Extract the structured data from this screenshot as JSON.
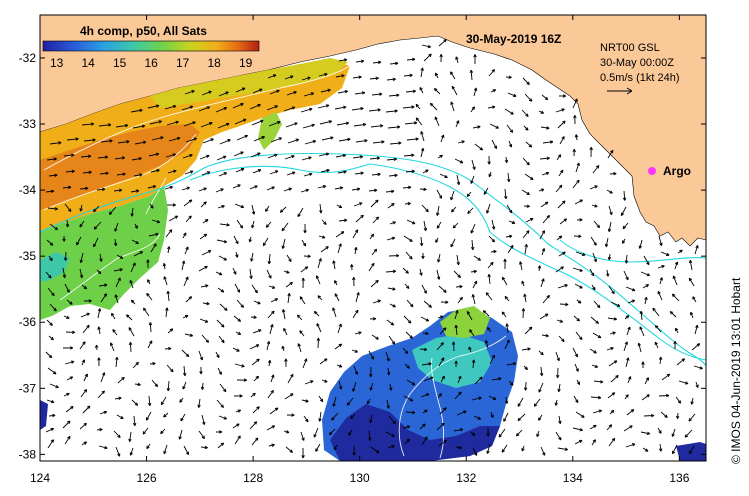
{
  "map": {
    "legend_title": "4h comp, p50, All Sats",
    "date_title": "30-May-2019 16Z",
    "info_lines": [
      "NRT00 GSL",
      "30-May 00:00Z",
      "0.5m/s (1kt 24h)"
    ],
    "argo_label": "Argo",
    "credit": "© IMOS 04-Jun-2019 13:01 Hobart",
    "colorbar": {
      "ticks": [
        "13",
        "14",
        "15",
        "16",
        "17",
        "18",
        "19"
      ],
      "colors": [
        "#1f1fa0",
        "#2a5ad8",
        "#2aa0e0",
        "#3ec8a8",
        "#6ed24a",
        "#c8d21e",
        "#f2b01a",
        "#e66e14",
        "#b41e14"
      ]
    },
    "colors": {
      "land": "#fbc998",
      "ocean": "#ffffff",
      "contour": "#20d8e0",
      "argo": "#ff33ff"
    },
    "lon_ticks": [
      "124",
      "126",
      "128",
      "130",
      "132",
      "134",
      "136"
    ],
    "lat_ticks": [
      "-32",
      "-33",
      "-34",
      "-35",
      "-36",
      "-37",
      "-38"
    ],
    "extent": {
      "lon_min": 124,
      "lon_max": 136.5,
      "lat_min": -38.1,
      "lat_max": -31.35
    }
  }
}
